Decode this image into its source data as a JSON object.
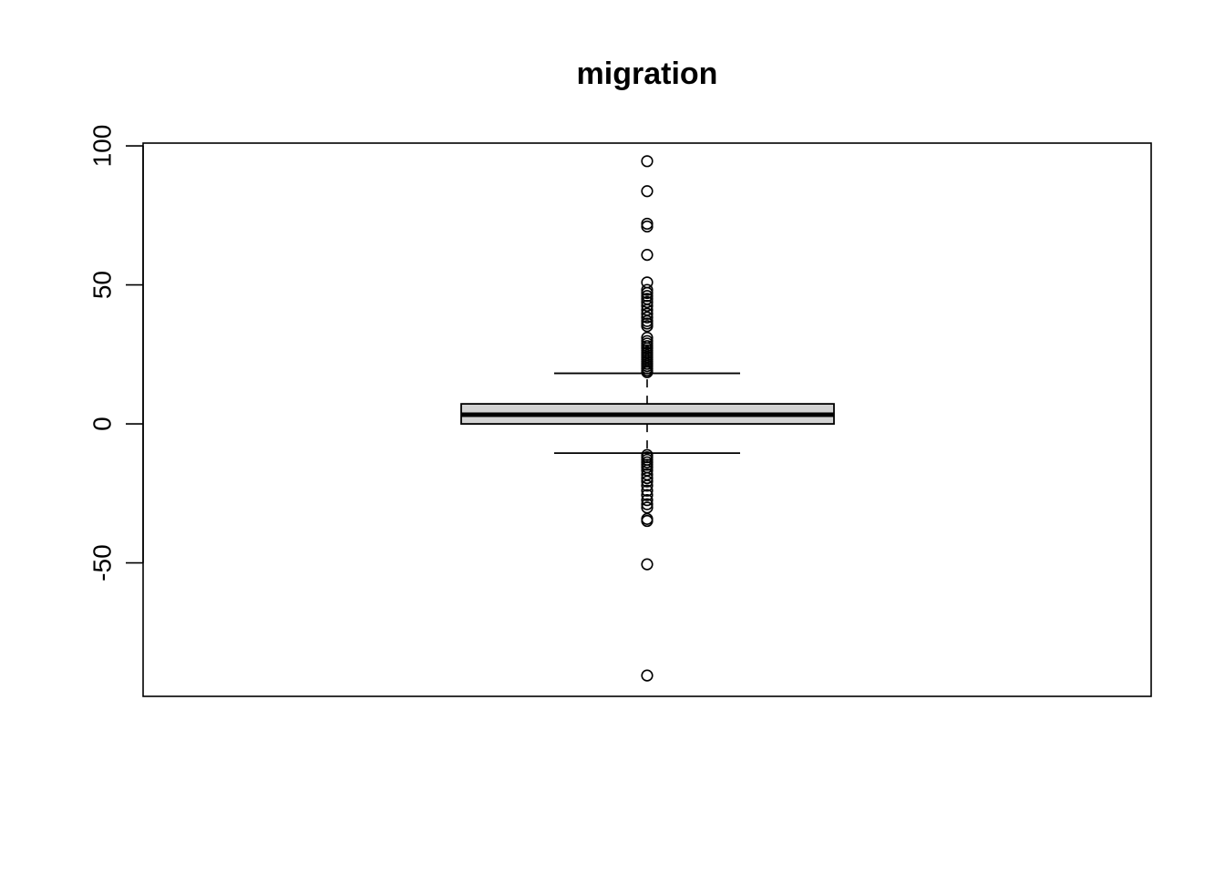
{
  "chart_data": {
    "type": "boxplot",
    "title": "migration",
    "xlabel": "",
    "ylabel": "",
    "ylim": [
      -98,
      101
    ],
    "y_ticks": [
      -50,
      0,
      50,
      100
    ],
    "y_tick_labels": [
      "-50",
      "0",
      "50",
      "100"
    ],
    "grid": false,
    "box": {
      "min_whisker": -10.5,
      "q1": 0,
      "median": 3.3,
      "q3": 7.2,
      "max_whisker": 18.2,
      "fill_color": "#d3d3d3"
    },
    "outliers": [
      94.5,
      83.7,
      72.0,
      71.0,
      60.8,
      50.9,
      48.2,
      47.1,
      46.0,
      45.0,
      43.8,
      42.5,
      41.0,
      39.6,
      38.3,
      37.0,
      36.1,
      35.2,
      31.0,
      29.8,
      28.9,
      28.0,
      27.2,
      26.4,
      25.6,
      24.8,
      24.0,
      23.2,
      22.4,
      21.6,
      20.8,
      20.0,
      19.2,
      18.6,
      -11.2,
      -12.0,
      -12.9,
      -13.8,
      -14.7,
      -15.6,
      -16.7,
      -18.2,
      -19.5,
      -20.7,
      -22.2,
      -24.0,
      -25.6,
      -27.4,
      -28.9,
      -30.1,
      -34.2,
      -34.9,
      -50.5,
      -90.5
    ]
  }
}
